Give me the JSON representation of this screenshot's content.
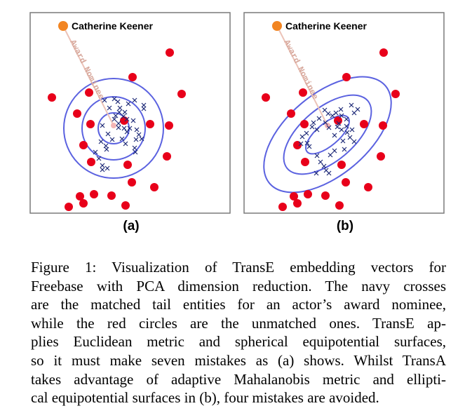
{
  "figure": {
    "entity_label": "Catherine Keener",
    "relation_label": "Award Nominee",
    "panels": [
      {
        "id": "a",
        "label": "(a)",
        "contour_shape": "circle"
      },
      {
        "id": "b",
        "label": "(b)",
        "contour_shape": "ellipse"
      }
    ],
    "colors": {
      "head_entity": "#f28522",
      "unmatched_circle": "#e8001a",
      "matched_cross": "#1e2a78",
      "contour": "#5b62e0",
      "relation_arrow": "#ecc3b8",
      "frame": "#7a7a7a"
    },
    "caption_lines": [
      "Figure 1: Visualization of TransE embedding vectors for",
      "Freebase with PCA dimension reduction. The navy crosses",
      "are the matched tail entities for an actor’s award nominee,",
      "while the red circles are the unmatched ones. TransE ap-",
      "plies Euclidean metric and spherical equipotential surfaces,",
      "so it must make seven mistakes as (a) shows. Whilst TransA",
      "takes advantage of adaptive Mahalanobis metric and ellipti-",
      "cal equipotential surfaces in (b), four mistakes are avoided."
    ]
  }
}
